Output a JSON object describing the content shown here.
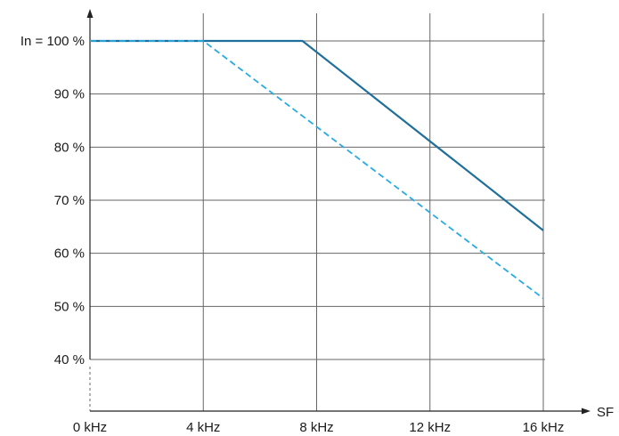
{
  "chart_data": {
    "type": "line",
    "title": "",
    "xlabel": "SF",
    "ylabel": "",
    "xlim": [
      0,
      16
    ],
    "ylim": [
      33,
      100
    ],
    "grid": true,
    "x_ticks": [
      0,
      4,
      8,
      12,
      16
    ],
    "x_tick_labels": [
      "0 kHz",
      "4 kHz",
      "8 kHz",
      "12 kHz",
      "16 kHz"
    ],
    "y_ticks": [
      100,
      90,
      80,
      70,
      60,
      50,
      40
    ],
    "y_tick_labels": [
      "In = 100 %",
      "90 %",
      "80 %",
      "70 %",
      "60 %",
      "50 %",
      "40 %"
    ],
    "series": [
      {
        "style": "solid",
        "color": "#1f6f9a",
        "points": [
          [
            0,
            100
          ],
          [
            7.5,
            100
          ],
          [
            16,
            64.3
          ]
        ]
      },
      {
        "style": "dashed",
        "color": "#29abe2",
        "points": [
          [
            0,
            100
          ],
          [
            4,
            100
          ],
          [
            16,
            51.5
          ]
        ]
      }
    ]
  }
}
